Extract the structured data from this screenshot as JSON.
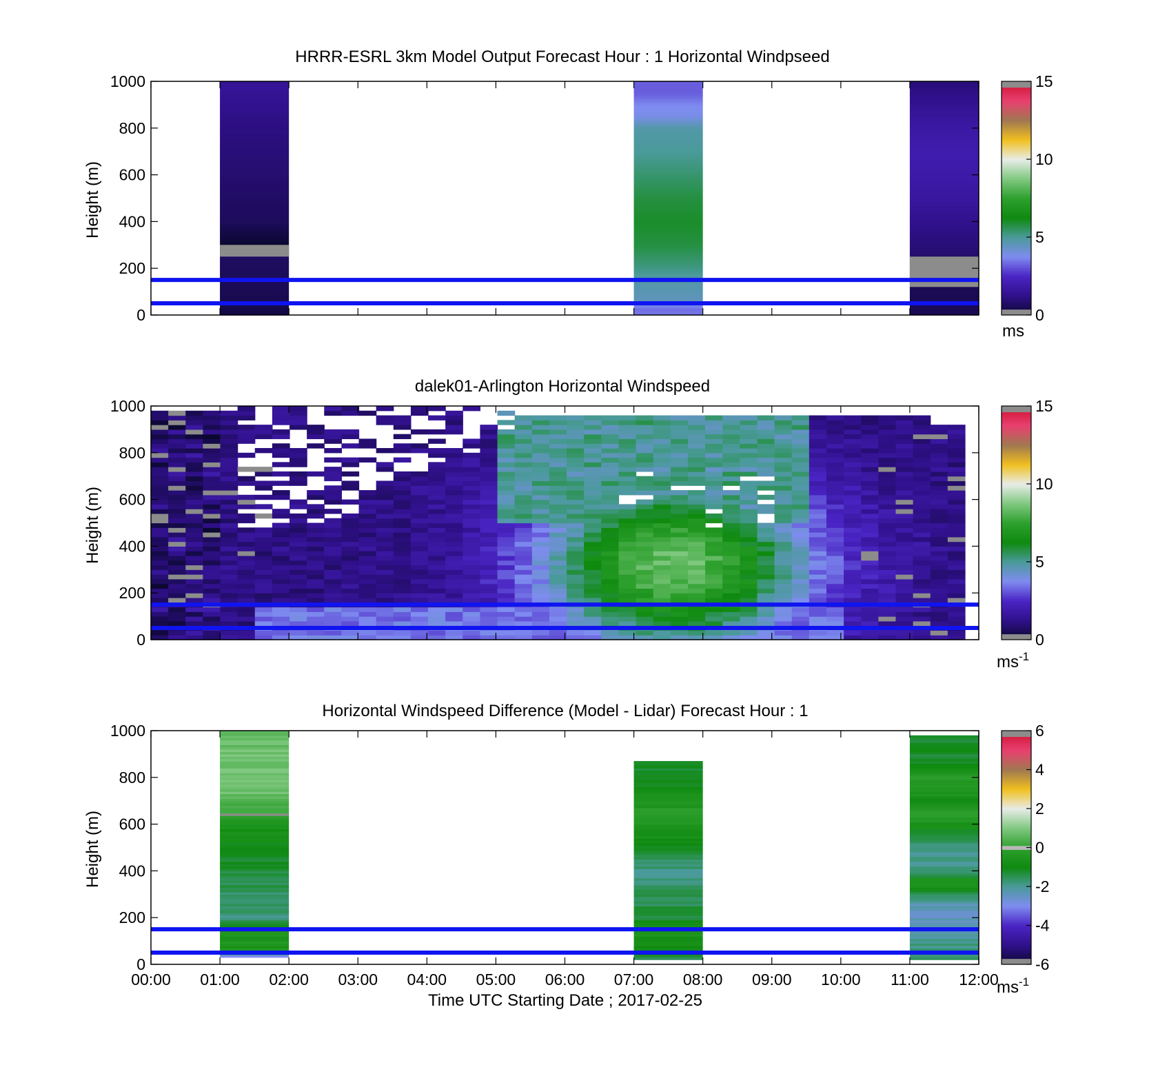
{
  "chart_data": [
    {
      "type": "heatmap",
      "title": "HRRR-ESRL 3km Model Output   Forecast Hour : 1 Horizontal Windpseed",
      "ylabel": "Height (m)",
      "xlabel": "",
      "ylim": [
        0,
        1000
      ],
      "xlim_hours": [
        0,
        12
      ],
      "y_ticks": [
        "0",
        "200",
        "400",
        "600",
        "800",
        "1000"
      ],
      "x_ticks": [],
      "reference_lines_m": [
        50,
        150
      ],
      "colorbar": {
        "min": 0,
        "max": 15,
        "ticks": [
          "0",
          "5",
          "10",
          "15"
        ],
        "unit": "ms",
        "unit_exp": ""
      },
      "columns": [
        {
          "start_hour": 1,
          "end_hour": 2,
          "profile": [
            [
              0,
              0.3
            ],
            [
              100,
              0.5
            ],
            [
              200,
              0.6
            ],
            [
              260,
              0.7
            ],
            [
              300,
              0.0
            ],
            [
              400,
              0.6
            ],
            [
              550,
              0.8
            ],
            [
              700,
              1.0
            ],
            [
              850,
              1.2
            ],
            [
              970,
              1.5
            ],
            [
              1000,
              1.5
            ]
          ],
          "gray_bands": [
            [
              250,
              300
            ]
          ]
        },
        {
          "start_hour": 7,
          "end_hour": 8,
          "profile": [
            [
              0,
              3.5
            ],
            [
              30,
              3.4
            ],
            [
              60,
              4.5
            ],
            [
              150,
              4.8
            ],
            [
              200,
              5.2
            ],
            [
              300,
              5.8
            ],
            [
              400,
              6.0
            ],
            [
              500,
              5.8
            ],
            [
              600,
              5.4
            ],
            [
              700,
              5.0
            ],
            [
              800,
              4.8
            ],
            [
              850,
              3.9
            ],
            [
              900,
              3.7
            ],
            [
              950,
              3.2
            ],
            [
              1000,
              3.2
            ]
          ],
          "gray_bands": []
        },
        {
          "start_hour": 11,
          "end_hour": 12,
          "profile": [
            [
              0,
              0.5
            ],
            [
              100,
              0.5
            ],
            [
              200,
              0.6
            ],
            [
              300,
              1.0
            ],
            [
              400,
              1.3
            ],
            [
              500,
              1.7
            ],
            [
              600,
              1.9
            ],
            [
              700,
              2.0
            ],
            [
              800,
              1.8
            ],
            [
              900,
              1.4
            ],
            [
              1000,
              1.0
            ]
          ],
          "gray_bands": [
            [
              120,
              250
            ]
          ]
        }
      ]
    },
    {
      "type": "heatmap",
      "title": "dalek01-Arlington  Horizontal Windspeed",
      "ylabel": "Height (m)",
      "xlabel": "",
      "ylim": [
        0,
        1000
      ],
      "xlim_hours": [
        0,
        12
      ],
      "y_ticks": [
        "0",
        "200",
        "400",
        "600",
        "800",
        "1000"
      ],
      "x_ticks": [],
      "reference_lines_m": [
        50,
        150
      ],
      "colorbar": {
        "min": 0,
        "max": 15,
        "ticks": [
          "0",
          "5",
          "10",
          "15"
        ],
        "unit": "ms",
        "unit_exp": "-1"
      },
      "lidar_field": {
        "start_hour": 0,
        "end_hour": 11.8,
        "columns": 47,
        "rows": 50,
        "jet_center_hour": 7.6,
        "jet_center_height_m": 320,
        "approx_max_speed_ms": 8.5
      }
    },
    {
      "type": "heatmap",
      "title": "Horizontal Windspeed Difference (Model - Lidar) Forecast Hour : 1",
      "ylabel": "Height (m)",
      "xlabel": "Time UTC  Starting Date ; 2017-02-25",
      "ylim": [
        0,
        1000
      ],
      "xlim_hours": [
        0,
        12
      ],
      "y_ticks": [
        "0",
        "200",
        "400",
        "600",
        "800",
        "1000"
      ],
      "x_ticks": [
        "00:00",
        "01:00",
        "02:00",
        "03:00",
        "04:00",
        "05:00",
        "06:00",
        "07:00",
        "08:00",
        "09:00",
        "10:00",
        "11:00",
        "12:00"
      ],
      "reference_lines_m": [
        50,
        150
      ],
      "colorbar": {
        "min": -6,
        "max": 6,
        "ticks": [
          "-6",
          "-4",
          "-2",
          "0",
          "2",
          "4",
          "6"
        ],
        "unit": "ms",
        "unit_exp": "-1"
      },
      "columns": [
        {
          "start_hour": 1,
          "end_hour": 2,
          "top_m": 1000,
          "profile": [
            [
              30,
              -3.6
            ],
            [
              60,
              -0.6
            ],
            [
              100,
              -0.4
            ],
            [
              150,
              -0.6
            ],
            [
              200,
              -1.8
            ],
            [
              300,
              -1.6
            ],
            [
              400,
              -1.3
            ],
            [
              500,
              -1.0
            ],
            [
              600,
              -0.6
            ],
            [
              640,
              0.0
            ],
            [
              700,
              0.6
            ],
            [
              800,
              0.9
            ],
            [
              900,
              0.8
            ],
            [
              950,
              0.7
            ],
            [
              1000,
              0.6
            ]
          ],
          "gray_bands": [
            [
              635,
              645
            ]
          ]
        },
        {
          "start_hour": 7,
          "end_hour": 8,
          "top_m": 870,
          "profile": [
            [
              20,
              -2.0
            ],
            [
              50,
              -1.0
            ],
            [
              150,
              -0.4
            ],
            [
              200,
              -1.2
            ],
            [
              300,
              -1.6
            ],
            [
              400,
              -1.8
            ],
            [
              500,
              -1.2
            ],
            [
              600,
              -0.3
            ],
            [
              650,
              -0.2
            ],
            [
              700,
              -0.6
            ],
            [
              800,
              -1.1
            ],
            [
              870,
              -1.3
            ]
          ],
          "gray_bands": []
        },
        {
          "start_hour": 11,
          "end_hour": 12,
          "top_m": 980,
          "profile": [
            [
              20,
              -1.5
            ],
            [
              100,
              -2.0
            ],
            [
              200,
              -2.5
            ],
            [
              250,
              -2.3
            ],
            [
              300,
              -1.4
            ],
            [
              350,
              -0.3
            ],
            [
              400,
              -1.8
            ],
            [
              500,
              -2.0
            ],
            [
              600,
              -0.6
            ],
            [
              650,
              -0.2
            ],
            [
              700,
              -0.7
            ],
            [
              800,
              -0.3
            ],
            [
              850,
              -0.9
            ],
            [
              900,
              -1.2
            ],
            [
              980,
              -1.4
            ]
          ],
          "gray_bands": []
        }
      ]
    }
  ],
  "colormap_stops": [
    "#0b0830",
    "#30108a",
    "#4a24c4",
    "#7f8cf0",
    "#4a9a9a",
    "#0f8a0f",
    "#2ea02e",
    "#80c880",
    "#e8ece8",
    "#f0c020",
    "#a07850",
    "#e84070",
    "#d01030"
  ],
  "gray_color": "#8c8c8c",
  "reference_line_color": "#0f14f0"
}
